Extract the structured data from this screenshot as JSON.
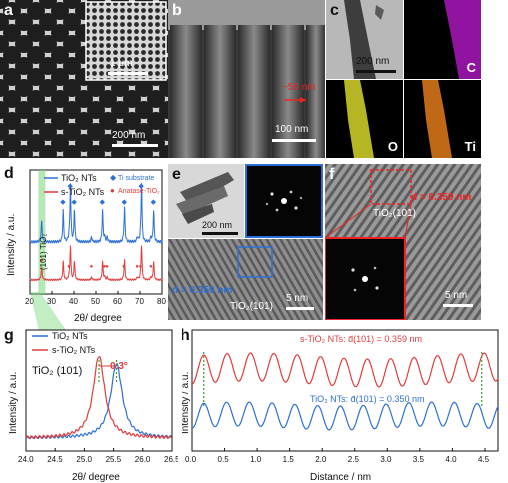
{
  "panels": {
    "a": {
      "label": "a",
      "inset_scale": "1 μm",
      "scale": "200 nm"
    },
    "b": {
      "label": "b",
      "annotation": "~50 nm",
      "scale": "100 nm"
    },
    "c": {
      "label": "c",
      "scale": "200 nm",
      "maps": [
        "C",
        "O",
        "Ti"
      ],
      "colors": {
        "C": "#c21bd6",
        "O": "#d6d62a",
        "Ti": "#e07a1a"
      }
    },
    "e": {
      "label": "e",
      "scale_tem": "200 nm",
      "d_text": "d = 0.350 nm",
      "plane": "TiO₂(101)",
      "scale_hr": "5 nm"
    },
    "f": {
      "label": "f",
      "d_text": "d = 0.359 nm",
      "plane": "TiO₂(101)",
      "scale": "5 nm"
    }
  },
  "chart_data": [
    {
      "id": "d",
      "type": "line",
      "label": "d",
      "xlabel": "2θ/ degree",
      "ylabel": "Intensity / a.u.",
      "xlim": [
        20,
        80
      ],
      "xticks": [
        20,
        30,
        40,
        50,
        60,
        70,
        80
      ],
      "series": [
        {
          "name": "TiO₂ NTs",
          "color": "#2c6fd6"
        },
        {
          "name": "s-TiO₂ NTs",
          "color": "#e23b3b"
        }
      ],
      "markers": [
        {
          "name": "Ti substrate",
          "symbol": "◆",
          "color": "#2c6fd6"
        },
        {
          "name": "Anatase-TiO₂",
          "symbol": "●",
          "color": "#e23b3b"
        }
      ],
      "peak_label": "(101) TiO₂",
      "ti_peaks": [
        35.1,
        38.4,
        40.2,
        53.0,
        63.0,
        70.7,
        76.2
      ],
      "anatase_peaks": [
        25.3,
        37.8,
        48.0,
        53.9,
        55.1,
        62.7,
        68.8,
        70.3,
        75.0
      ]
    },
    {
      "id": "g",
      "type": "line",
      "label": "g",
      "xlabel": "2θ/ degree",
      "ylabel": "Intensity / a.u.",
      "xlim": [
        24.0,
        26.5
      ],
      "xticks": [
        24.0,
        24.5,
        25.0,
        25.5,
        26.0,
        26.5
      ],
      "annotation": "TiO₂ (101)",
      "shift_label": "0.3°",
      "series": [
        {
          "name": "TiO₂ NTs",
          "color": "#2c6fd6",
          "peak": 25.55
        },
        {
          "name": "s-TiO₂ NTs",
          "color": "#e23b3b",
          "peak": 25.25
        }
      ]
    },
    {
      "id": "h",
      "type": "line",
      "label": "h",
      "xlabel": "Distance / nm",
      "ylabel": "Intensity / a.u.",
      "xlim": [
        0,
        4.7
      ],
      "xticks": [
        0.0,
        0.5,
        1.0,
        1.5,
        2.0,
        2.5,
        3.0,
        3.5,
        4.0,
        4.5
      ],
      "series": [
        {
          "name": "s-TiO₂ NTs",
          "label": "s-TiO₂ NTs: d̄(101) = 0.359 nm",
          "color": "#e23b3b",
          "period": 0.359
        },
        {
          "name": "TiO₂ NTs",
          "label": "TiO₂ NTs: d̄(101) = 0.350 nm",
          "color": "#2c6fd6",
          "period": 0.35
        }
      ]
    }
  ]
}
